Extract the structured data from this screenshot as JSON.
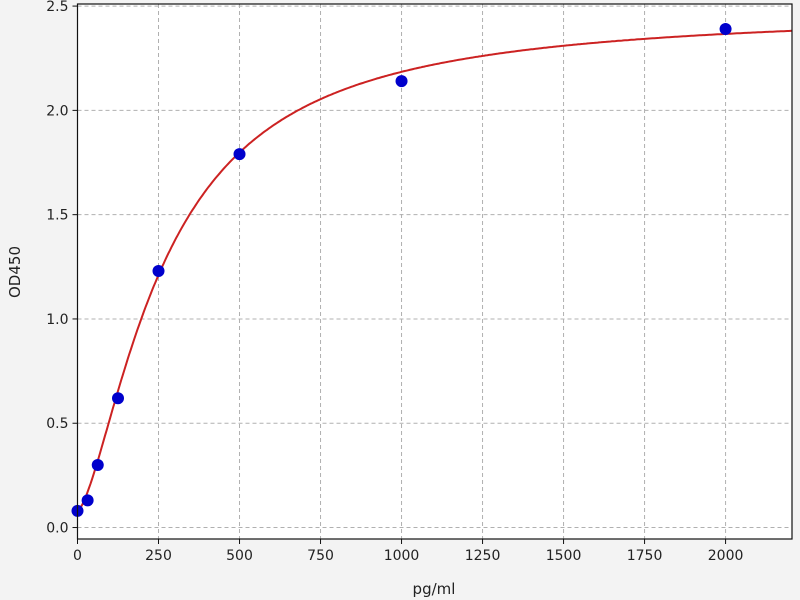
{
  "chart_data": {
    "type": "scatter",
    "title": "",
    "xlabel": "pg/ml",
    "ylabel": "OD450",
    "xlim": [
      0,
      2205
    ],
    "ylim": [
      -0.055,
      2.51
    ],
    "xticks": [
      0,
      250,
      500,
      750,
      1000,
      1250,
      1500,
      1750,
      2000
    ],
    "yticks": [
      0.0,
      0.5,
      1.0,
      1.5,
      2.0,
      2.5
    ],
    "xtick_labels": [
      "0",
      "250",
      "500",
      "750",
      "1000",
      "1250",
      "1500",
      "1750",
      "2000"
    ],
    "ytick_labels": [
      "0.0",
      "0.5",
      "1.0",
      "1.5",
      "2.0",
      "2.5"
    ],
    "grid": true,
    "series": [
      {
        "x": [
          0,
          31.25,
          62.5,
          125,
          250,
          500,
          1000,
          2000
        ],
        "y": [
          0.08,
          0.13,
          0.3,
          0.62,
          1.23,
          1.79,
          2.14,
          2.39
        ],
        "color": "#0000cc",
        "marker": "circle"
      }
    ],
    "fit_curve": {
      "type": "4PL",
      "color": "#cc2222"
    }
  }
}
